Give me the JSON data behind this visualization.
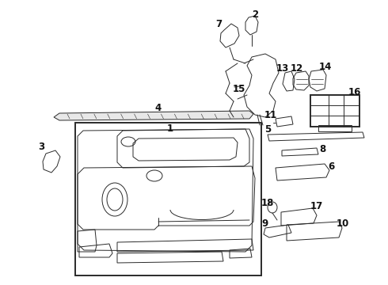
{
  "bg_color": "#ffffff",
  "line_color": "#2a2a2a",
  "label_color": "#111111",
  "label_fontsize": 8.5,
  "lw_main": 1.1,
  "lw_thin": 0.7,
  "lw_thick": 1.4
}
